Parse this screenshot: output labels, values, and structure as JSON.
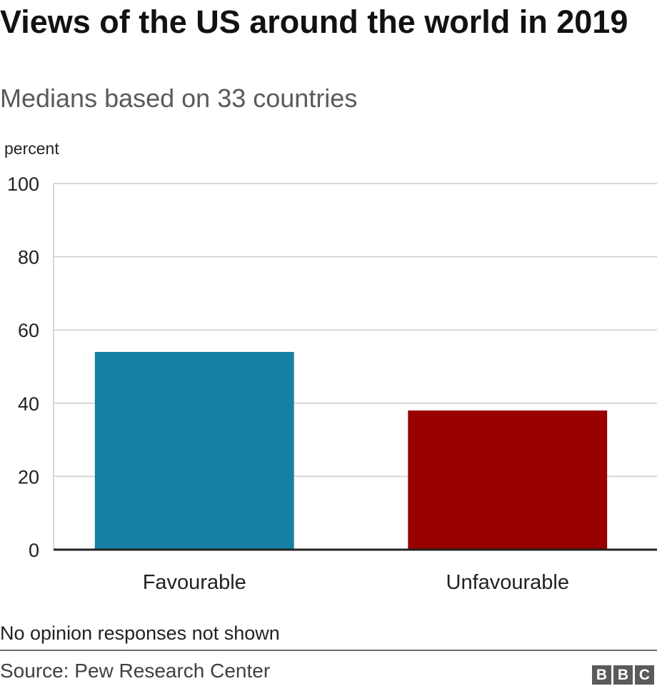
{
  "header": {
    "title": "Views of the US around the world in 2019",
    "subtitle": "Medians based on 33 countries"
  },
  "chart_data": {
    "type": "bar",
    "title": "Views of the US around the world in 2019",
    "subtitle": "Medians based on 33 countries",
    "categories": [
      "Favourable",
      "Unfavourable"
    ],
    "values": [
      54,
      38
    ],
    "colors": [
      "#1580a3",
      "#990000"
    ],
    "xlabel": "",
    "ylabel": "percent",
    "ylim": [
      0,
      100
    ],
    "yticks": [
      0,
      20,
      40,
      60,
      80,
      100
    ],
    "grid": true
  },
  "footer": {
    "note": "No opinion responses not shown",
    "source": "Source: Pew Research Center",
    "logo_letters": [
      "B",
      "B",
      "C"
    ]
  }
}
